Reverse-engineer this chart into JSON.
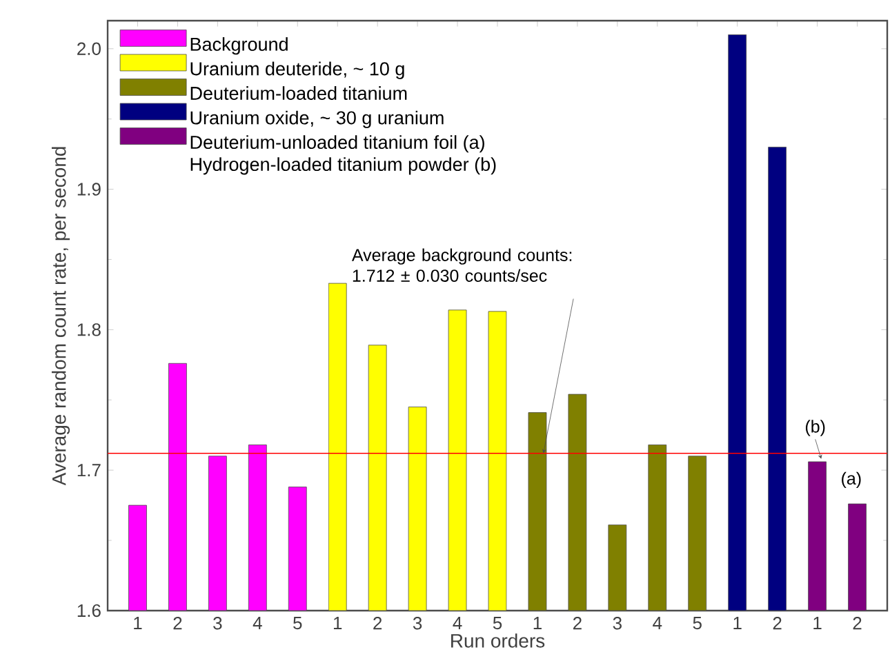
{
  "chart_data": {
    "type": "bar",
    "categories": [
      "1",
      "2",
      "3",
      "4",
      "5",
      "1",
      "2",
      "3",
      "4",
      "5",
      "1",
      "2",
      "3",
      "4",
      "5",
      "1",
      "2",
      "1",
      "2"
    ],
    "series": [
      {
        "name": "Background",
        "color": "#ff00ff",
        "values": [
          1.675,
          1.776,
          1.71,
          1.718,
          1.688,
          null,
          null,
          null,
          null,
          null,
          null,
          null,
          null,
          null,
          null,
          null,
          null,
          null,
          null
        ]
      },
      {
        "name": "Uranium deuteride, ~ 10 g",
        "color": "#ffff00",
        "values": [
          null,
          null,
          null,
          null,
          null,
          1.833,
          1.789,
          1.745,
          1.814,
          1.813,
          null,
          null,
          null,
          null,
          null,
          null,
          null,
          null,
          null
        ]
      },
      {
        "name": "Deuterium-loaded titanium",
        "color": "#808000",
        "values": [
          null,
          null,
          null,
          null,
          null,
          null,
          null,
          null,
          null,
          null,
          1.741,
          1.754,
          1.661,
          1.718,
          1.71,
          null,
          null,
          null,
          null
        ]
      },
      {
        "name": "Uranium oxide, ~ 30 g uranium",
        "color": "#000080",
        "values": [
          null,
          null,
          null,
          null,
          null,
          null,
          null,
          null,
          null,
          null,
          null,
          null,
          null,
          null,
          null,
          2.01,
          1.93,
          null,
          null
        ]
      },
      {
        "name": "Deuterium-unloaded titanium foil (a) Hydrogen-loaded titanium powder (b)",
        "color": "#800080",
        "values": [
          null,
          null,
          null,
          null,
          null,
          null,
          null,
          null,
          null,
          null,
          null,
          null,
          null,
          null,
          null,
          null,
          null,
          1.706,
          1.676
        ]
      }
    ],
    "xlabel": "Run orders",
    "ylabel": "Average random count rate, per second",
    "ylim": [
      1.6,
      2.02
    ],
    "yticks": [
      1.6,
      1.7,
      1.8,
      1.9,
      {
        "value": 2.0,
        "label": "2.0"
      }
    ],
    "ref_lines": [
      {
        "axis": "y",
        "value": 1.712,
        "label": "Average background counts: 1.712 ± 0.030 counts/sec",
        "color": "#ff0000"
      }
    ],
    "annotations": [
      "(b)",
      "(a)"
    ],
    "legend": "top left",
    "grid": false
  }
}
